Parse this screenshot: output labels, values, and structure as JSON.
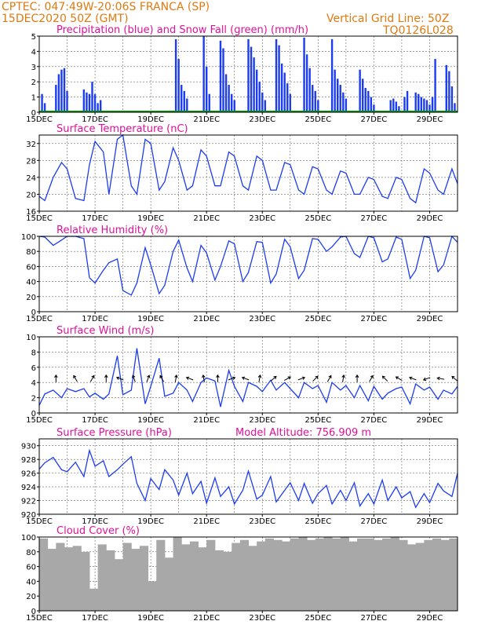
{
  "header": {
    "line1_left": "CPTEC:   047:49W-20:06S  FRANCA (SP)",
    "line2_left": "15DEC2020 50Z (GMT)",
    "line2_right": "Vertical Grid Line: 50Z",
    "line3_right": "TQ0126L028"
  },
  "colors": {
    "header": "#e07a10",
    "panel_title": "#e0109a",
    "series": "#1c3cf0",
    "snow": "#00a000",
    "cloud": "#a8a8a8",
    "grid": "#666666"
  },
  "chart_data": [
    {
      "id": "precip",
      "type": "bar",
      "title": "Precipitation (blue) and Snow Fall (green) (mm/h)",
      "ylim": [
        0,
        5
      ],
      "yticks": [
        "0",
        "1",
        "2",
        "3",
        "4",
        "5"
      ],
      "xlim": [
        15,
        30
      ],
      "xticks": [
        "15DEC",
        "17DEC",
        "19DEC",
        "21DEC",
        "23DEC",
        "25DEC",
        "27DEC",
        "29DEC"
      ],
      "series": [
        {
          "x": [
            15.1,
            15.2,
            15.6,
            15.7,
            15.8,
            15.9,
            16.0,
            16.6,
            16.7,
            16.8,
            16.9,
            17.0,
            17.1,
            17.2,
            19.9,
            20.0,
            20.1,
            20.2,
            20.3,
            20.9,
            21.0,
            21.1,
            21.5,
            21.6,
            21.7,
            21.8,
            21.9,
            22.0,
            22.5,
            22.6,
            22.7,
            22.8,
            22.9,
            23.0,
            23.1,
            23.5,
            23.6,
            23.7,
            23.8,
            23.9,
            24.0,
            24.5,
            24.6,
            24.7,
            24.8,
            24.9,
            25.0,
            25.5,
            25.6,
            25.7,
            25.8,
            25.9,
            26.0,
            26.5,
            26.6,
            26.7,
            26.8,
            26.9,
            27.0,
            27.6,
            27.7,
            27.8,
            27.9,
            28.1,
            28.2,
            28.5,
            28.6,
            28.7,
            28.8,
            28.9,
            29.0,
            29.1,
            29.2,
            29.6,
            29.7,
            29.8,
            29.9
          ],
          "values": [
            1.2,
            0.6,
            1.8,
            2.5,
            2.8,
            2.9,
            1.4,
            1.5,
            1.3,
            1.2,
            2.0,
            1.2,
            0.6,
            0.8,
            4.8,
            3.5,
            1.8,
            1.4,
            0.9,
            5.0,
            3.0,
            1.2,
            4.7,
            4.2,
            2.5,
            1.8,
            1.2,
            0.8,
            4.8,
            4.3,
            3.6,
            2.8,
            2.0,
            1.3,
            0.8,
            4.8,
            4.4,
            3.2,
            2.6,
            1.9,
            1.2,
            4.9,
            3.8,
            2.9,
            1.8,
            1.4,
            0.8,
            4.8,
            2.8,
            2.2,
            1.8,
            1.3,
            0.9,
            2.8,
            2.2,
            1.6,
            1.4,
            1.0,
            0.5,
            0.8,
            0.9,
            0.7,
            0.4,
            1.0,
            1.4,
            1.3,
            1.2,
            1.0,
            0.9,
            0.8,
            0.5,
            1.0,
            3.5,
            3.1,
            2.7,
            1.7,
            0.6
          ]
        },
        {
          "values": [
            0
          ]
        }
      ]
    },
    {
      "id": "temp",
      "type": "line",
      "title": "Surface Temperature (nC)",
      "ylim": [
        16,
        34
      ],
      "yticks": [
        "16",
        "20",
        "24",
        "28",
        "32"
      ],
      "xlim": [
        15,
        30
      ],
      "xticks": [
        "15DEC",
        "17DEC",
        "19DEC",
        "21DEC",
        "23DEC",
        "25DEC",
        "27DEC",
        "29DEC"
      ],
      "series": [
        {
          "x": [
            15,
            15.2,
            15.5,
            15.8,
            16.0,
            16.3,
            16.6,
            16.8,
            17.0,
            17.3,
            17.5,
            17.8,
            18.0,
            18.3,
            18.5,
            18.8,
            19.0,
            19.3,
            19.5,
            19.8,
            20.0,
            20.3,
            20.5,
            20.8,
            21.0,
            21.3,
            21.5,
            21.8,
            22.0,
            22.3,
            22.5,
            22.8,
            23.0,
            23.3,
            23.5,
            23.8,
            24.0,
            24.3,
            24.5,
            24.8,
            25.0,
            25.3,
            25.5,
            25.8,
            26.0,
            26.3,
            26.5,
            26.8,
            27.0,
            27.3,
            27.5,
            27.8,
            28.0,
            28.3,
            28.5,
            28.8,
            29.0,
            29.3,
            29.5,
            29.8,
            30.0
          ],
          "values": [
            19.5,
            18.5,
            24,
            27.5,
            26,
            19,
            18.5,
            27,
            32.5,
            30,
            20,
            33,
            34,
            22,
            20,
            33,
            32,
            21,
            23,
            31,
            28,
            21,
            22,
            30.5,
            29,
            22,
            22,
            30,
            29,
            22,
            21,
            29,
            28,
            21,
            21,
            27.5,
            27,
            21,
            20,
            26.5,
            26,
            21,
            20,
            25.5,
            25,
            20,
            20,
            24,
            23.5,
            19.5,
            19,
            24,
            23.5,
            19,
            18,
            26,
            25,
            21,
            20,
            26,
            22.5
          ]
        }
      ]
    },
    {
      "id": "humid",
      "type": "line",
      "title": "Relative Humidity (%)",
      "ylim": [
        0,
        100
      ],
      "yticks": [
        "0",
        "20",
        "40",
        "60",
        "80",
        "100"
      ],
      "xlim": [
        15,
        30
      ],
      "xticks": [
        "15DEC",
        "17DEC",
        "19DEC",
        "21DEC",
        "23DEC",
        "25DEC",
        "27DEC",
        "29DEC"
      ],
      "series": [
        {
          "x": [
            15,
            15.2,
            15.5,
            15.8,
            16.0,
            16.3,
            16.6,
            16.8,
            17.0,
            17.3,
            17.5,
            17.8,
            18.0,
            18.3,
            18.5,
            18.8,
            19.0,
            19.3,
            19.5,
            19.8,
            20.0,
            20.3,
            20.5,
            20.8,
            21.0,
            21.3,
            21.5,
            21.8,
            22.0,
            22.3,
            22.5,
            22.8,
            23.0,
            23.3,
            23.5,
            23.8,
            24.0,
            24.3,
            24.5,
            24.8,
            25.0,
            25.3,
            25.5,
            25.8,
            26.0,
            26.3,
            26.5,
            26.8,
            27.0,
            27.3,
            27.5,
            27.8,
            28.0,
            28.3,
            28.5,
            28.8,
            29.0,
            29.3,
            29.5,
            29.8,
            30.0
          ],
          "values": [
            100,
            99,
            88,
            95,
            100,
            100,
            97,
            45,
            38,
            55,
            65,
            70,
            28,
            22,
            38,
            85,
            62,
            24,
            35,
            80,
            95,
            58,
            40,
            88,
            78,
            42,
            60,
            94,
            90,
            40,
            52,
            93,
            92,
            38,
            50,
            96,
            86,
            44,
            55,
            97,
            96,
            80,
            86,
            99,
            100,
            77,
            72,
            100,
            98,
            66,
            70,
            99,
            96,
            44,
            55,
            100,
            98,
            53,
            62,
            100,
            92
          ]
        }
      ]
    },
    {
      "id": "wind",
      "type": "line",
      "title": "Surface Wind (m/s)",
      "ylim": [
        0,
        10
      ],
      "yticks": [
        "0",
        "2",
        "4",
        "6",
        "8",
        "10"
      ],
      "xlim": [
        15,
        30
      ],
      "xticks": [
        "15DEC",
        "17DEC",
        "19DEC",
        "21DEC",
        "23DEC",
        "25DEC",
        "27DEC",
        "29DEC"
      ],
      "series": [
        {
          "x": [
            15,
            15.2,
            15.5,
            15.8,
            16.0,
            16.3,
            16.6,
            16.8,
            17.0,
            17.3,
            17.5,
            17.8,
            18.0,
            18.3,
            18.5,
            18.8,
            19.0,
            19.3,
            19.5,
            19.8,
            20.0,
            20.3,
            20.5,
            20.8,
            21.0,
            21.3,
            21.5,
            21.8,
            22.0,
            22.3,
            22.5,
            22.8,
            23.0,
            23.3,
            23.5,
            23.8,
            24.0,
            24.3,
            24.5,
            24.8,
            25.0,
            25.3,
            25.5,
            25.8,
            26.0,
            26.3,
            26.5,
            26.8,
            27.0,
            27.3,
            27.5,
            27.8,
            28.0,
            28.3,
            28.5,
            28.8,
            29.0,
            29.3,
            29.5,
            29.8,
            30.0
          ],
          "values": [
            1.0,
            2.5,
            3.0,
            2.0,
            3.2,
            2.8,
            3.2,
            2.1,
            2.6,
            1.8,
            2.5,
            7.5,
            2.4,
            3.0,
            8.5,
            1.2,
            3.5,
            7.2,
            2.2,
            2.6,
            4.0,
            3.0,
            1.5,
            4.0,
            4.6,
            4.2,
            0.8,
            5.6,
            3.5,
            1.5,
            4.0,
            3.5,
            2.8,
            4.3,
            3.0,
            4.0,
            3.2,
            2.0,
            4.0,
            3.2,
            3.6,
            1.4,
            4.0,
            3.0,
            3.6,
            2.0,
            3.6,
            1.6,
            3.5,
            1.8,
            2.6,
            3.2,
            3.4,
            1.2,
            3.8,
            3.0,
            3.4,
            1.8,
            3.0,
            2.5,
            3.5
          ]
        }
      ],
      "vectors": {
        "x": [
          15.6,
          16.3,
          16.9,
          17.4,
          17.9,
          18.4,
          18.9,
          19.4,
          19.9,
          20.4,
          20.9,
          21.4,
          21.9,
          22.4,
          22.9,
          23.4,
          23.9,
          24.4,
          24.9,
          25.4,
          25.9,
          26.4,
          26.9,
          27.4,
          27.9,
          28.4,
          28.9,
          29.4,
          29.9
        ],
        "angles": [
          -90,
          -120,
          -60,
          -90,
          -160,
          -110,
          -70,
          -120,
          -80,
          -160,
          -100,
          -90,
          -20,
          -160,
          -80,
          -40,
          -30,
          -20,
          -45,
          -60,
          -80,
          -90,
          -60,
          -135,
          -150,
          -160,
          -200,
          -170,
          -140
        ]
      }
    },
    {
      "id": "press",
      "type": "line",
      "title": "Surface Pressure (hPa)",
      "annotation": "Model Altitude: 756.909  m",
      "ylim": [
        920,
        931
      ],
      "yticks": [
        "920",
        "922",
        "924",
        "926",
        "928",
        "930"
      ],
      "xlim": [
        15,
        30
      ],
      "xticks": [
        "15DEC",
        "17DEC",
        "19DEC",
        "21DEC",
        "23DEC",
        "25DEC",
        "27DEC",
        "29DEC"
      ],
      "series": [
        {
          "x": [
            15,
            15.2,
            15.5,
            15.8,
            16.0,
            16.3,
            16.6,
            16.8,
            17.0,
            17.3,
            17.5,
            17.8,
            18.0,
            18.3,
            18.5,
            18.8,
            19.0,
            19.3,
            19.5,
            19.8,
            20.0,
            20.3,
            20.5,
            20.8,
            21.0,
            21.3,
            21.5,
            21.8,
            22.0,
            22.3,
            22.5,
            22.8,
            23.0,
            23.3,
            23.5,
            23.8,
            24.0,
            24.3,
            24.5,
            24.8,
            25.0,
            25.3,
            25.5,
            25.8,
            26.0,
            26.3,
            26.5,
            26.8,
            27.0,
            27.3,
            27.5,
            27.8,
            28.0,
            28.3,
            28.5,
            28.8,
            29.0,
            29.3,
            29.5,
            29.8,
            30.0
          ],
          "values": [
            926.6,
            927.5,
            928.3,
            926.5,
            926.2,
            927.6,
            925.5,
            929.3,
            927.0,
            927.8,
            925.5,
            926.5,
            927.3,
            928.4,
            924.5,
            922.0,
            925.2,
            923.6,
            926.5,
            925.0,
            922.8,
            926.0,
            923.0,
            924.8,
            921.6,
            925.3,
            922.6,
            924.0,
            921.5,
            923.5,
            926.3,
            922.2,
            922.8,
            925.5,
            921.8,
            923.5,
            924.6,
            922.0,
            924.5,
            921.6,
            923.0,
            924.2,
            921.5,
            923.5,
            922.0,
            924.6,
            921.2,
            923.0,
            921.5,
            925.0,
            922.0,
            924.0,
            922.4,
            923.3,
            921.0,
            923.0,
            921.7,
            924.5,
            923.4,
            922.6,
            926.0
          ]
        }
      ]
    },
    {
      "id": "cloud",
      "type": "bar",
      "title": "Cloud Cover (%)",
      "ylim": [
        0,
        100
      ],
      "yticks": [
        "0",
        "20",
        "40",
        "60",
        "80",
        "100"
      ],
      "xlim": [
        15,
        30
      ],
      "xticks": [
        "15DEC",
        "17DEC",
        "19DEC",
        "21DEC",
        "23DEC",
        "25DEC",
        "27DEC",
        "29DEC"
      ],
      "series": [
        {
          "x": [
            15.0,
            15.3,
            15.6,
            15.9,
            16.2,
            16.5,
            16.8,
            17.1,
            17.4,
            17.7,
            18.0,
            18.3,
            18.6,
            18.9,
            19.2,
            19.5,
            19.8,
            20.1,
            20.4,
            20.7,
            21.0,
            21.3,
            21.6,
            21.9,
            22.2,
            22.5,
            22.8,
            23.1,
            23.4,
            23.7,
            24.0,
            24.3,
            24.6,
            24.9,
            25.2,
            25.5,
            25.8,
            26.1,
            26.4,
            26.7,
            27.0,
            27.3,
            27.6,
            27.9,
            28.2,
            28.5,
            28.8,
            29.1,
            29.4,
            29.7
          ],
          "values": [
            98,
            84,
            92,
            86,
            88,
            80,
            30,
            90,
            82,
            70,
            92,
            84,
            88,
            40,
            96,
            72,
            100,
            90,
            94,
            86,
            96,
            82,
            80,
            92,
            96,
            88,
            94,
            98,
            96,
            94,
            98,
            100,
            96,
            98,
            100,
            98,
            100,
            94,
            98,
            98,
            96,
            98,
            100,
            96,
            90,
            92,
            96,
            98,
            96,
            98
          ]
        }
      ]
    }
  ]
}
